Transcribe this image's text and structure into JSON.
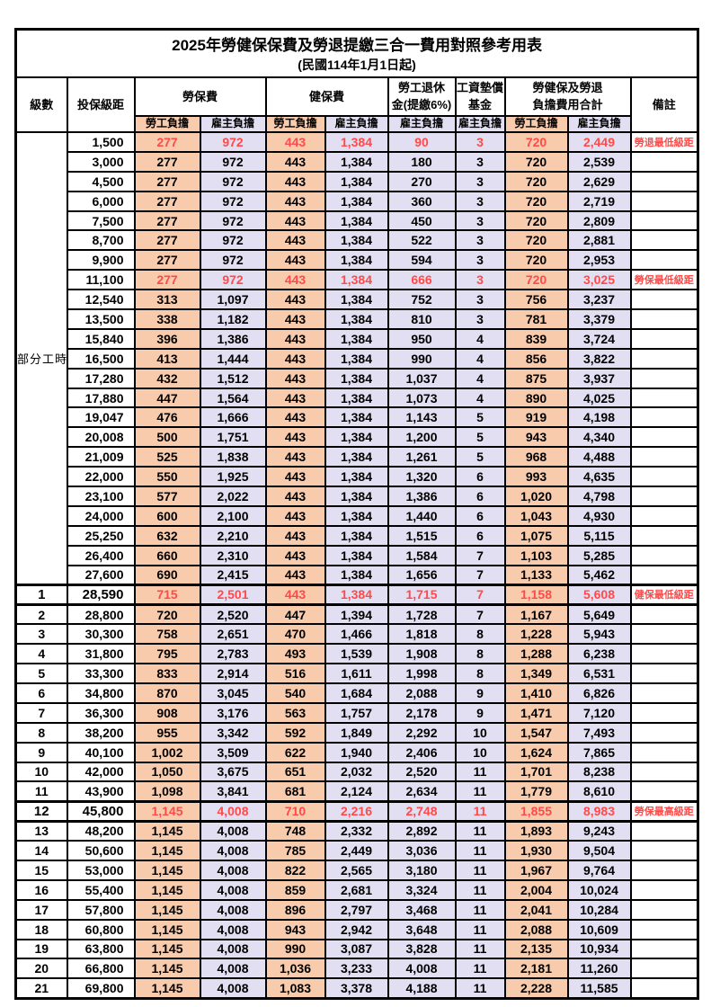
{
  "title": "2025年勞健保保費及勞退提繳三合一費用對照參考用表",
  "subtitle": "(民國114年1月1日起)",
  "colors": {
    "employee_bg": "#F8CBAD",
    "employer_bg": "#E1DFF1",
    "highlight_red": "#FF4A4A",
    "border": "#000000"
  },
  "header": {
    "level": "級數",
    "bracket": "投保級距",
    "labor_group": "勞保費",
    "health_group": "健保費",
    "pension_line1": "勞工退休",
    "pension_line2": "金(提繳6%)",
    "wage_fund_line1": "工資墊償",
    "wage_fund_line2": "基金",
    "total_line1": "勞健保及勞退",
    "total_line2": "負擔費用合計",
    "remark": "備註",
    "employee": "勞工負擔",
    "employer": "雇主負擔"
  },
  "part_time_label": "部分工時",
  "rows": [
    {
      "level": "",
      "bracket": "1,500",
      "cells": [
        "277",
        "972",
        "443",
        "1,384",
        "90",
        "3",
        "720",
        "2,449"
      ],
      "remark": "勞退最低級距",
      "red": true,
      "bold": false
    },
    {
      "level": "",
      "bracket": "3,000",
      "cells": [
        "277",
        "972",
        "443",
        "1,384",
        "180",
        "3",
        "720",
        "2,539"
      ],
      "remark": "",
      "red": false,
      "bold": false
    },
    {
      "level": "",
      "bracket": "4,500",
      "cells": [
        "277",
        "972",
        "443",
        "1,384",
        "270",
        "3",
        "720",
        "2,629"
      ],
      "remark": "",
      "red": false,
      "bold": false
    },
    {
      "level": "",
      "bracket": "6,000",
      "cells": [
        "277",
        "972",
        "443",
        "1,384",
        "360",
        "3",
        "720",
        "2,719"
      ],
      "remark": "",
      "red": false,
      "bold": false
    },
    {
      "level": "",
      "bracket": "7,500",
      "cells": [
        "277",
        "972",
        "443",
        "1,384",
        "450",
        "3",
        "720",
        "2,809"
      ],
      "remark": "",
      "red": false,
      "bold": false
    },
    {
      "level": "",
      "bracket": "8,700",
      "cells": [
        "277",
        "972",
        "443",
        "1,384",
        "522",
        "3",
        "720",
        "2,881"
      ],
      "remark": "",
      "red": false,
      "bold": false
    },
    {
      "level": "",
      "bracket": "9,900",
      "cells": [
        "277",
        "972",
        "443",
        "1,384",
        "594",
        "3",
        "720",
        "2,953"
      ],
      "remark": "",
      "red": false,
      "bold": false
    },
    {
      "level": "",
      "bracket": "11,100",
      "cells": [
        "277",
        "972",
        "443",
        "1,384",
        "666",
        "3",
        "720",
        "3,025"
      ],
      "remark": "勞保最低級距",
      "red": true,
      "bold": false
    },
    {
      "level": "",
      "bracket": "12,540",
      "cells": [
        "313",
        "1,097",
        "443",
        "1,384",
        "752",
        "3",
        "756",
        "3,237"
      ],
      "remark": "",
      "red": false,
      "bold": false
    },
    {
      "level": "",
      "bracket": "13,500",
      "cells": [
        "338",
        "1,182",
        "443",
        "1,384",
        "810",
        "3",
        "781",
        "3,379"
      ],
      "remark": "",
      "red": false,
      "bold": false
    },
    {
      "level": "",
      "bracket": "15,840",
      "cells": [
        "396",
        "1,386",
        "443",
        "1,384",
        "950",
        "4",
        "839",
        "3,724"
      ],
      "remark": "",
      "red": false,
      "bold": false
    },
    {
      "level": "",
      "bracket": "16,500",
      "cells": [
        "413",
        "1,444",
        "443",
        "1,384",
        "990",
        "4",
        "856",
        "3,822"
      ],
      "remark": "",
      "red": false,
      "bold": false
    },
    {
      "level": "",
      "bracket": "17,280",
      "cells": [
        "432",
        "1,512",
        "443",
        "1,384",
        "1,037",
        "4",
        "875",
        "3,937"
      ],
      "remark": "",
      "red": false,
      "bold": false
    },
    {
      "level": "",
      "bracket": "17,880",
      "cells": [
        "447",
        "1,564",
        "443",
        "1,384",
        "1,073",
        "4",
        "890",
        "4,025"
      ],
      "remark": "",
      "red": false,
      "bold": false
    },
    {
      "level": "",
      "bracket": "19,047",
      "cells": [
        "476",
        "1,666",
        "443",
        "1,384",
        "1,143",
        "5",
        "919",
        "4,198"
      ],
      "remark": "",
      "red": false,
      "bold": false
    },
    {
      "level": "",
      "bracket": "20,008",
      "cells": [
        "500",
        "1,751",
        "443",
        "1,384",
        "1,200",
        "5",
        "943",
        "4,340"
      ],
      "remark": "",
      "red": false,
      "bold": false
    },
    {
      "level": "",
      "bracket": "21,009",
      "cells": [
        "525",
        "1,838",
        "443",
        "1,384",
        "1,261",
        "5",
        "968",
        "4,488"
      ],
      "remark": "",
      "red": false,
      "bold": false
    },
    {
      "level": "",
      "bracket": "22,000",
      "cells": [
        "550",
        "1,925",
        "443",
        "1,384",
        "1,320",
        "6",
        "993",
        "4,635"
      ],
      "remark": "",
      "red": false,
      "bold": false
    },
    {
      "level": "",
      "bracket": "23,100",
      "cells": [
        "577",
        "2,022",
        "443",
        "1,384",
        "1,386",
        "6",
        "1,020",
        "4,798"
      ],
      "remark": "",
      "red": false,
      "bold": false
    },
    {
      "level": "",
      "bracket": "24,000",
      "cells": [
        "600",
        "2,100",
        "443",
        "1,384",
        "1,440",
        "6",
        "1,043",
        "4,930"
      ],
      "remark": "",
      "red": false,
      "bold": false
    },
    {
      "level": "",
      "bracket": "25,250",
      "cells": [
        "632",
        "2,210",
        "443",
        "1,384",
        "1,515",
        "6",
        "1,075",
        "5,115"
      ],
      "remark": "",
      "red": false,
      "bold": false
    },
    {
      "level": "",
      "bracket": "26,400",
      "cells": [
        "660",
        "2,310",
        "443",
        "1,384",
        "1,584",
        "7",
        "1,103",
        "5,285"
      ],
      "remark": "",
      "red": false,
      "bold": false
    },
    {
      "level": "",
      "bracket": "27,600",
      "cells": [
        "690",
        "2,415",
        "443",
        "1,384",
        "1,656",
        "7",
        "1,133",
        "5,462"
      ],
      "remark": "",
      "red": false,
      "bold": false
    },
    {
      "level": "1",
      "bracket": "28,590",
      "cells": [
        "715",
        "2,501",
        "443",
        "1,384",
        "1,715",
        "7",
        "1,158",
        "5,608"
      ],
      "remark": "健保最低級距",
      "red": true,
      "bold": true
    },
    {
      "level": "2",
      "bracket": "28,800",
      "cells": [
        "720",
        "2,520",
        "447",
        "1,394",
        "1,728",
        "7",
        "1,167",
        "5,649"
      ],
      "remark": "",
      "red": false,
      "bold": false
    },
    {
      "level": "3",
      "bracket": "30,300",
      "cells": [
        "758",
        "2,651",
        "470",
        "1,466",
        "1,818",
        "8",
        "1,228",
        "5,943"
      ],
      "remark": "",
      "red": false,
      "bold": false
    },
    {
      "level": "4",
      "bracket": "31,800",
      "cells": [
        "795",
        "2,783",
        "493",
        "1,539",
        "1,908",
        "8",
        "1,288",
        "6,238"
      ],
      "remark": "",
      "red": false,
      "bold": false
    },
    {
      "level": "5",
      "bracket": "33,300",
      "cells": [
        "833",
        "2,914",
        "516",
        "1,611",
        "1,998",
        "8",
        "1,349",
        "6,531"
      ],
      "remark": "",
      "red": false,
      "bold": false
    },
    {
      "level": "6",
      "bracket": "34,800",
      "cells": [
        "870",
        "3,045",
        "540",
        "1,684",
        "2,088",
        "9",
        "1,410",
        "6,826"
      ],
      "remark": "",
      "red": false,
      "bold": false
    },
    {
      "level": "7",
      "bracket": "36,300",
      "cells": [
        "908",
        "3,176",
        "563",
        "1,757",
        "2,178",
        "9",
        "1,471",
        "7,120"
      ],
      "remark": "",
      "red": false,
      "bold": false
    },
    {
      "level": "8",
      "bracket": "38,200",
      "cells": [
        "955",
        "3,342",
        "592",
        "1,849",
        "2,292",
        "10",
        "1,547",
        "7,493"
      ],
      "remark": "",
      "red": false,
      "bold": false
    },
    {
      "level": "9",
      "bracket": "40,100",
      "cells": [
        "1,002",
        "3,509",
        "622",
        "1,940",
        "2,406",
        "10",
        "1,624",
        "7,865"
      ],
      "remark": "",
      "red": false,
      "bold": false
    },
    {
      "level": "10",
      "bracket": "42,000",
      "cells": [
        "1,050",
        "3,675",
        "651",
        "2,032",
        "2,520",
        "11",
        "1,701",
        "8,238"
      ],
      "remark": "",
      "red": false,
      "bold": false
    },
    {
      "level": "11",
      "bracket": "43,900",
      "cells": [
        "1,098",
        "3,841",
        "681",
        "2,124",
        "2,634",
        "11",
        "1,779",
        "8,610"
      ],
      "remark": "",
      "red": false,
      "bold": false
    },
    {
      "level": "12",
      "bracket": "45,800",
      "cells": [
        "1,145",
        "4,008",
        "710",
        "2,216",
        "2,748",
        "11",
        "1,855",
        "8,983"
      ],
      "remark": "勞保最高級距",
      "red": true,
      "bold": true
    },
    {
      "level": "13",
      "bracket": "48,200",
      "cells": [
        "1,145",
        "4,008",
        "748",
        "2,332",
        "2,892",
        "11",
        "1,893",
        "9,243"
      ],
      "remark": "",
      "red": false,
      "bold": false
    },
    {
      "level": "14",
      "bracket": "50,600",
      "cells": [
        "1,145",
        "4,008",
        "785",
        "2,449",
        "3,036",
        "11",
        "1,930",
        "9,504"
      ],
      "remark": "",
      "red": false,
      "bold": false
    },
    {
      "level": "15",
      "bracket": "53,000",
      "cells": [
        "1,145",
        "4,008",
        "822",
        "2,565",
        "3,180",
        "11",
        "1,967",
        "9,764"
      ],
      "remark": "",
      "red": false,
      "bold": false
    },
    {
      "level": "16",
      "bracket": "55,400",
      "cells": [
        "1,145",
        "4,008",
        "859",
        "2,681",
        "3,324",
        "11",
        "2,004",
        "10,024"
      ],
      "remark": "",
      "red": false,
      "bold": false
    },
    {
      "level": "17",
      "bracket": "57,800",
      "cells": [
        "1,145",
        "4,008",
        "896",
        "2,797",
        "3,468",
        "11",
        "2,041",
        "10,284"
      ],
      "remark": "",
      "red": false,
      "bold": false
    },
    {
      "level": "18",
      "bracket": "60,800",
      "cells": [
        "1,145",
        "4,008",
        "943",
        "2,942",
        "3,648",
        "11",
        "2,088",
        "10,609"
      ],
      "remark": "",
      "red": false,
      "bold": false
    },
    {
      "level": "19",
      "bracket": "63,800",
      "cells": [
        "1,145",
        "4,008",
        "990",
        "3,087",
        "3,828",
        "11",
        "2,135",
        "10,934"
      ],
      "remark": "",
      "red": false,
      "bold": false
    },
    {
      "level": "20",
      "bracket": "66,800",
      "cells": [
        "1,145",
        "4,008",
        "1,036",
        "3,233",
        "4,008",
        "11",
        "2,181",
        "11,260"
      ],
      "remark": "",
      "red": false,
      "bold": false
    },
    {
      "level": "21",
      "bracket": "69,800",
      "cells": [
        "1,145",
        "4,008",
        "1,083",
        "3,378",
        "4,188",
        "11",
        "2,228",
        "11,585"
      ],
      "remark": "",
      "red": false,
      "bold": false
    }
  ]
}
